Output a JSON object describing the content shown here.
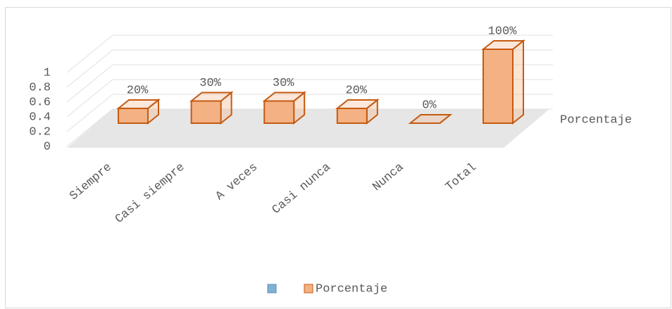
{
  "chart_data": {
    "type": "bar3d",
    "categories": [
      "Siempre",
      "Casi siempre",
      "A veces",
      "Casi nunca",
      "Nunca",
      "Total"
    ],
    "series": [
      {
        "name": "Porcentaje",
        "color": "#f4b183",
        "edge": "#c55a11",
        "values": [
          0.2,
          0.3,
          0.3,
          0.2,
          0,
          1
        ],
        "value_labels": [
          "20%",
          "30%",
          "30%",
          "20%",
          "0%",
          "100%"
        ]
      }
    ],
    "ylim": [
      0,
      1
    ],
    "yticks": [
      0,
      0.2,
      0.4,
      0.6,
      0.8,
      1
    ],
    "grid": true
  }
}
